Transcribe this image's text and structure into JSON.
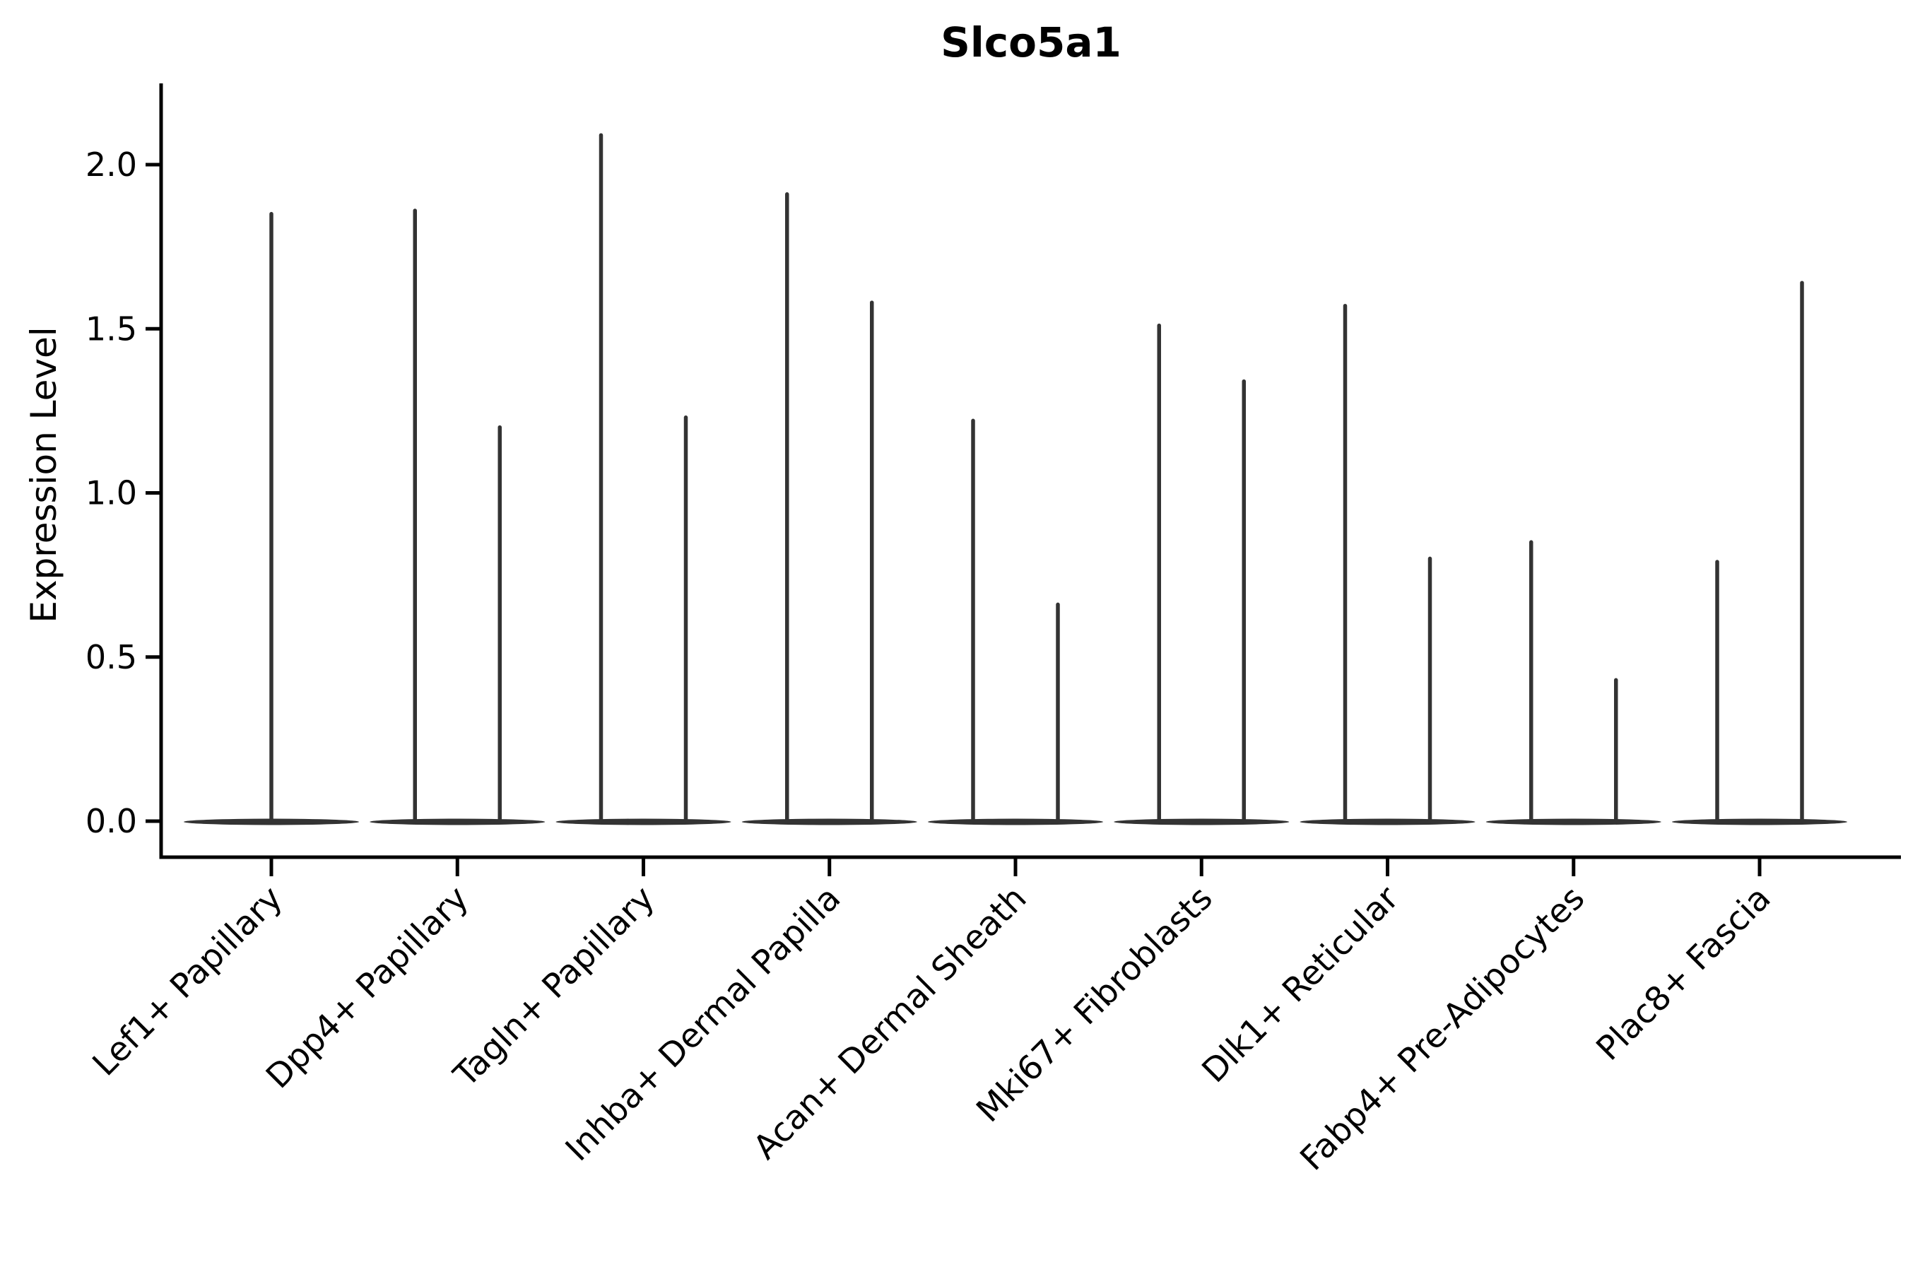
{
  "chart_data": {
    "type": "violin",
    "title": "Slco5a1",
    "ylabel": "Expression Level",
    "xlabel": "",
    "ylim": [
      -0.11,
      2.25
    ],
    "yticks": [
      0.0,
      0.5,
      1.0,
      1.5,
      2.0
    ],
    "ytick_labels": [
      "0.0",
      "0.5",
      "1.0",
      "1.5",
      "2.0"
    ],
    "grid": false,
    "legend": false,
    "categories": [
      "Lef1+ Papillary",
      "Dpp4+ Papillary",
      "Tagln+ Papillary",
      "Inhba+ Dermal Papilla",
      "Acan+ Dermal Sheath",
      "Mki67+ Fibroblasts",
      "Dlk1+ Reticular",
      "Fabp4+ Pre-Adipocytes",
      "Plac8+ Fascia"
    ],
    "groups": [
      {
        "label": "Lef1+ Papillary",
        "violin_max": [
          1.85
        ]
      },
      {
        "label": "Dpp4+ Papillary",
        "violin_max": [
          1.86,
          1.2
        ]
      },
      {
        "label": "Tagln+ Papillary",
        "violin_max": [
          2.09,
          1.23
        ]
      },
      {
        "label": "Inhba+ Dermal Papilla",
        "violin_max": [
          1.91,
          1.58
        ]
      },
      {
        "label": "Acan+ Dermal Sheath",
        "violin_max": [
          1.22,
          0.66
        ]
      },
      {
        "label": "Mki67+ Fibroblasts",
        "violin_max": [
          1.51,
          1.34
        ]
      },
      {
        "label": "Dlk1+ Reticular",
        "violin_max": [
          1.57,
          0.8
        ]
      },
      {
        "label": "Fabp4+ Pre-Adipocytes",
        "violin_max": [
          0.85,
          0.43
        ]
      },
      {
        "label": "Plac8+ Fascia",
        "violin_max": [
          0.79,
          1.64
        ]
      }
    ],
    "description": "Violin plot of Slco5a1 expression; most cells at 0 giving flat wide bases with thin tall density spikes reaching each violin's maximum expression.",
    "style": {
      "background": "#ffffff",
      "violin_color": "#333333",
      "axis_color": "#000000",
      "text_color": "#000000"
    }
  }
}
